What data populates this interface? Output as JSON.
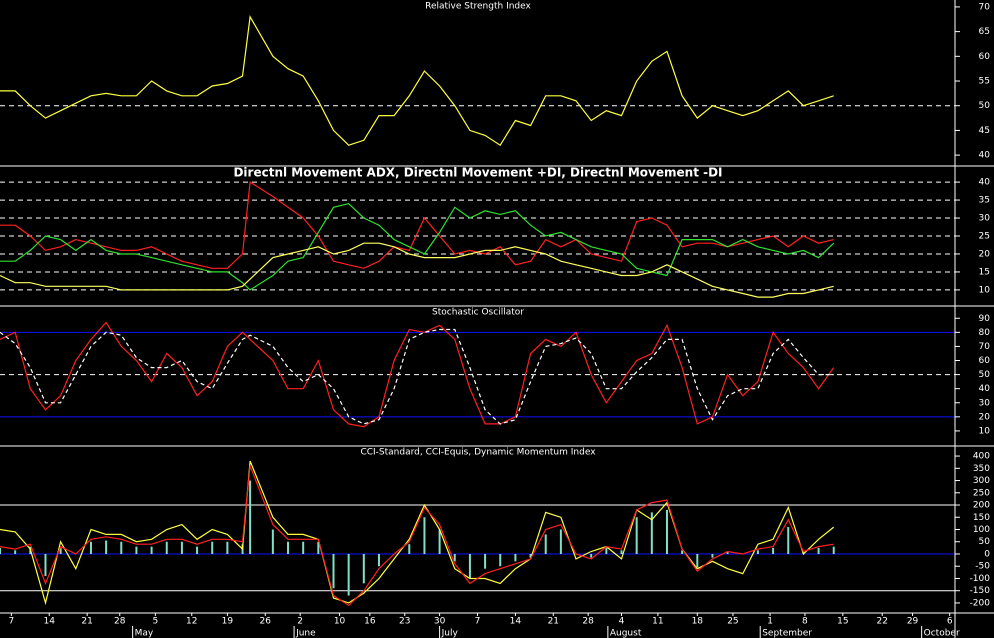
{
  "x_axis": {
    "xlim": [
      0,
      126
    ],
    "x": [
      0,
      2,
      4,
      6,
      8,
      10,
      12,
      14,
      16,
      18,
      20,
      22,
      24,
      26,
      28,
      30,
      32,
      33,
      36,
      38,
      40,
      42,
      44,
      46,
      48,
      50,
      52,
      54,
      56,
      58,
      60,
      62,
      64,
      66,
      68,
      70,
      72,
      74,
      76,
      78,
      80,
      82,
      84,
      86,
      88,
      90,
      92,
      94,
      96,
      98,
      100,
      102,
      104,
      106,
      108,
      110
    ],
    "xticks": [
      {
        "value": 1.5,
        "label": "7"
      },
      {
        "value": 6.5,
        "label": "14"
      },
      {
        "value": 11.5,
        "label": "21"
      },
      {
        "value": 15.8,
        "label": "28"
      },
      {
        "value": 20.5,
        "label": "5"
      },
      {
        "value": 25.3,
        "label": "12"
      },
      {
        "value": 30,
        "label": "19"
      },
      {
        "value": 35,
        "label": "26"
      },
      {
        "value": 39.6,
        "label": "2"
      },
      {
        "value": 44.8,
        "label": "10"
      },
      {
        "value": 48.8,
        "label": "16"
      },
      {
        "value": 53.4,
        "label": "23"
      },
      {
        "value": 58,
        "label": "30"
      },
      {
        "value": 63,
        "label": "7"
      },
      {
        "value": 68,
        "label": "14"
      },
      {
        "value": 73,
        "label": "21"
      },
      {
        "value": 77.6,
        "label": "28"
      },
      {
        "value": 82,
        "label": "4"
      },
      {
        "value": 86.8,
        "label": "11"
      },
      {
        "value": 92,
        "label": "18"
      },
      {
        "value": 96.7,
        "label": "25"
      },
      {
        "value": 101.6,
        "label": "1"
      },
      {
        "value": 106.2,
        "label": "8"
      },
      {
        "value": 111.2,
        "label": "15"
      },
      {
        "value": 116.4,
        "label": "22"
      },
      {
        "value": 120.4,
        "label": "29"
      },
      {
        "value": 125.3,
        "label": "6"
      }
    ],
    "months": [
      {
        "value": 17.5,
        "label": "May"
      },
      {
        "value": 38.8,
        "label": "June"
      },
      {
        "value": 58,
        "label": "July"
      },
      {
        "value": 80.2,
        "label": "August"
      },
      {
        "value": 100.3,
        "label": "September"
      },
      {
        "value": 121.6,
        "label": "October"
      }
    ]
  },
  "chart_data": [
    {
      "type": "line",
      "title": "Relative Strength Index",
      "ylim": [
        38,
        71.4
      ],
      "yticks": [
        40,
        45,
        50,
        55,
        60,
        65,
        70
      ],
      "levels": [
        {
          "value": 50,
          "color": "#ffffff",
          "dashed": true
        }
      ],
      "series": [
        {
          "color": "#ffff40",
          "style": "line",
          "values": [
            53,
            53,
            50,
            47.5,
            49,
            50.5,
            52,
            52.5,
            52,
            52,
            55,
            53,
            52,
            52,
            54,
            54.5,
            56,
            68,
            60,
            57.5,
            56,
            51,
            45,
            42,
            43,
            48,
            48,
            52,
            57,
            54,
            50,
            45,
            44,
            42,
            47,
            46,
            52,
            52,
            51,
            47,
            49,
            48,
            55,
            59,
            61,
            52,
            47.5,
            50,
            49,
            48,
            49,
            51,
            53,
            50,
            51,
            52
          ]
        }
      ]
    },
    {
      "type": "line",
      "title": "Directnl Movement ADX, Directnl Movement +DI, Directnl Movement -DI",
      "ylim": [
        5.8,
        44.2
      ],
      "yticks": [
        10,
        15,
        20,
        25,
        30,
        35,
        40
      ],
      "grid": true,
      "levels": [],
      "series": [
        {
          "color": "#ff2020",
          "style": "line",
          "values": [
            28,
            28,
            25,
            21,
            22,
            24,
            23,
            22,
            21,
            21,
            22,
            20,
            18,
            17,
            16,
            16,
            20,
            40,
            36,
            33,
            30,
            25,
            18,
            17,
            16,
            18,
            22,
            21,
            30,
            25,
            20,
            21,
            20,
            22,
            17,
            18,
            24,
            22,
            24,
            20,
            19,
            18,
            29,
            30,
            28,
            22,
            23,
            23,
            22,
            23,
            24,
            25,
            22,
            25,
            23,
            24
          ]
        },
        {
          "color": "#30e030",
          "style": "line",
          "values": [
            18,
            18,
            21,
            25,
            24,
            21,
            24,
            21,
            20,
            20,
            19,
            18,
            17,
            16,
            15,
            15,
            12,
            10,
            14,
            18,
            19,
            26,
            33,
            34,
            30,
            28,
            24,
            22,
            20,
            26,
            33,
            30,
            32,
            31,
            32,
            28,
            25,
            26,
            24,
            22,
            21,
            20,
            16,
            15,
            14,
            24,
            24,
            24,
            22,
            24,
            22,
            21,
            20,
            21,
            19,
            23
          ]
        },
        {
          "color": "#ffff60",
          "style": "line",
          "values": [
            14,
            12,
            12,
            11,
            11,
            11,
            11,
            11,
            10,
            10,
            10,
            10,
            10,
            10,
            10,
            10,
            11,
            13,
            19,
            20,
            21,
            22,
            20,
            21,
            23,
            23,
            22,
            20,
            19,
            19,
            19,
            20,
            21,
            21,
            22,
            21,
            20,
            18,
            17,
            16,
            15,
            14,
            14,
            15,
            17,
            15,
            13,
            11,
            10,
            9,
            8,
            8,
            9,
            9,
            10,
            11
          ]
        }
      ]
    },
    {
      "type": "line",
      "title": "Stochastic Oscillator",
      "ylim": [
        0,
        98
      ],
      "yticks": [
        10,
        20,
        30,
        40,
        50,
        60,
        70,
        80,
        90
      ],
      "levels": [
        {
          "value": 80,
          "color": "#1010ff",
          "dashed": false
        },
        {
          "value": 20,
          "color": "#1010ff",
          "dashed": false
        },
        {
          "value": 50,
          "color": "#ffffff",
          "dashed": true
        }
      ],
      "series": [
        {
          "color": "#ff2020",
          "style": "line",
          "values": [
            75,
            80,
            40,
            25,
            35,
            60,
            75,
            87,
            70,
            60,
            45,
            65,
            55,
            35,
            45,
            70,
            80,
            75,
            60,
            40,
            40,
            60,
            25,
            15,
            13,
            20,
            60,
            82,
            80,
            85,
            75,
            40,
            15,
            15,
            20,
            65,
            75,
            70,
            80,
            50,
            30,
            45,
            60,
            65,
            85,
            55,
            15,
            20,
            50,
            35,
            45,
            80,
            65,
            55,
            40,
            55
          ]
        },
        {
          "color": "#ffffff",
          "style": "dashed",
          "values": [
            80,
            72,
            55,
            30,
            30,
            50,
            70,
            80,
            78,
            62,
            55,
            55,
            60,
            45,
            40,
            58,
            75,
            78,
            70,
            55,
            45,
            50,
            40,
            20,
            15,
            18,
            40,
            75,
            80,
            82,
            82,
            55,
            25,
            15,
            18,
            45,
            70,
            72,
            76,
            65,
            40,
            40,
            52,
            62,
            75,
            75,
            40,
            18,
            35,
            40,
            40,
            65,
            75,
            62,
            50,
            50
          ]
        }
      ]
    },
    {
      "type": "line",
      "title": "CCI-Standard, CCI-Equis, Dynamic Momentum Index",
      "ylim": [
        -237,
        437
      ],
      "yticks": [
        -200,
        -150,
        -100,
        -50,
        0,
        50,
        100,
        150,
        200,
        250,
        300,
        350,
        400
      ],
      "levels": [
        {
          "value": 200,
          "color": "#ffffff",
          "dashed": false
        },
        {
          "value": -150,
          "color": "#ffffff",
          "dashed": false
        },
        {
          "value": 0,
          "color": "#1010ff",
          "dashed": false
        }
      ],
      "series": [
        {
          "color": "#80e0c8",
          "style": "histogram",
          "values": [
            25,
            15,
            30,
            -90,
            25,
            0,
            50,
            55,
            50,
            30,
            30,
            50,
            50,
            30,
            50,
            50,
            40,
            300,
            100,
            50,
            50,
            50,
            -140,
            -170,
            -120,
            -50,
            0,
            40,
            150,
            100,
            -30,
            -100,
            -60,
            -50,
            -30,
            -15,
            80,
            100,
            0,
            -15,
            25,
            15,
            150,
            170,
            180,
            15,
            -55,
            -15,
            8,
            0,
            15,
            25,
            110,
            8,
            25,
            30
          ]
        },
        {
          "color": "#ffff40",
          "style": "line",
          "values": [
            100,
            90,
            20,
            -200,
            50,
            -60,
            100,
            80,
            80,
            50,
            60,
            100,
            120,
            60,
            100,
            80,
            20,
            380,
            150,
            80,
            80,
            60,
            -180,
            -200,
            -160,
            -100,
            -20,
            60,
            200,
            100,
            -60,
            -100,
            -100,
            -120,
            -60,
            -20,
            170,
            150,
            -20,
            10,
            30,
            -20,
            180,
            140,
            210,
            20,
            -60,
            -30,
            -60,
            -80,
            40,
            60,
            190,
            0,
            60,
            110
          ]
        },
        {
          "color": "#ff2020",
          "style": "line",
          "values": [
            30,
            20,
            40,
            -120,
            30,
            0,
            60,
            70,
            60,
            40,
            40,
            60,
            60,
            40,
            60,
            60,
            50,
            360,
            120,
            60,
            60,
            60,
            -170,
            -210,
            -150,
            -60,
            0,
            50,
            190,
            120,
            -40,
            -120,
            -80,
            -60,
            -40,
            -20,
            100,
            120,
            0,
            -20,
            30,
            20,
            180,
            210,
            220,
            20,
            -70,
            -20,
            10,
            0,
            20,
            30,
            140,
            10,
            30,
            40
          ]
        }
      ]
    }
  ]
}
